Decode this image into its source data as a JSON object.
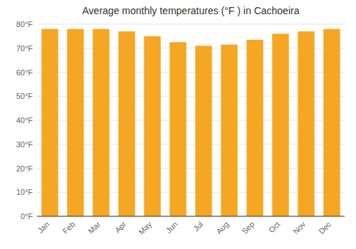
{
  "chart_data": {
    "type": "bar",
    "title": "Average monthly temperatures (°F ) in Cachoeira",
    "categories": [
      "Jan",
      "Feb",
      "Mar",
      "Apr",
      "May",
      "Jun",
      "Jul",
      "Aug",
      "Sep",
      "Oct",
      "Nov",
      "Dec"
    ],
    "values": [
      78,
      78,
      78,
      77,
      75,
      72.5,
      71,
      71.5,
      73.5,
      76,
      77,
      78
    ],
    "color": "#F5A623",
    "ylim": [
      0,
      80
    ],
    "yticks": [
      {
        "value": 0,
        "label": "0°F"
      },
      {
        "value": 10,
        "label": "10°F"
      },
      {
        "value": 20,
        "label": "20°F"
      },
      {
        "value": 30,
        "label": "30°F"
      },
      {
        "value": 40,
        "label": "40°F"
      },
      {
        "value": 50,
        "label": "50°F"
      },
      {
        "value": 60,
        "label": "60°F"
      },
      {
        "value": 70,
        "label": "70°F"
      },
      {
        "value": 80,
        "label": "80°F"
      }
    ],
    "grid": true
  }
}
